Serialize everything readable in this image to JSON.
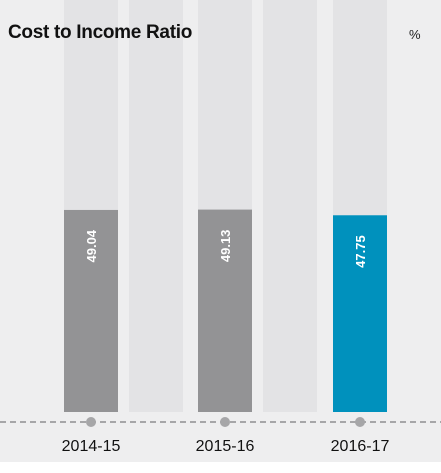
{
  "chart_data": {
    "type": "bar",
    "title": "Cost to Income Ratio",
    "unit": "%",
    "categories": [
      "2014-15",
      "2015-16",
      "2016-17"
    ],
    "values": [
      49.04,
      49.13,
      47.75
    ],
    "value_labels": [
      "49.04",
      "49.13",
      "47.75"
    ],
    "ylim": [
      0,
      100
    ],
    "highlight_index": 2,
    "grid": false,
    "legend": "none"
  },
  "colors": {
    "panel_background": "#eeeeef",
    "track": "#e3e3e5",
    "bar": "#939395",
    "bar_highlight": "#0091bd",
    "label_text": "#ffffff",
    "baseline": "#a6a6a8",
    "marker": "#a6a6a8",
    "tick_text": "#111111"
  }
}
